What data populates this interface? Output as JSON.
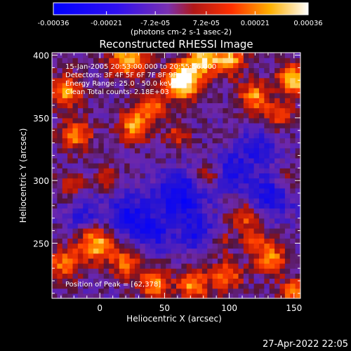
{
  "chart_data": {
    "type": "heatmap",
    "title": "Reconstructed RHESSI Image",
    "xlabel": "Heliocentric X (arcsec)",
    "ylabel": "Heliocentric Y (arcsec)",
    "xlim": [
      -37,
      155
    ],
    "ylim": [
      206,
      402
    ],
    "x_ticks": [
      0,
      50,
      100,
      150
    ],
    "y_ticks": [
      250,
      300,
      350,
      400
    ],
    "colorbar": {
      "min": -0.00036,
      "max": 0.00036,
      "tick_values": [
        -0.00036,
        -0.00021,
        -7.2e-05,
        7.2e-05,
        0.00021,
        0.00036
      ],
      "tick_labels": [
        "-0.00036",
        "-0.00021",
        "-7.2e-05",
        "7.2e-05",
        "0.00021",
        "0.00036"
      ],
      "unit_label": "(photons cm-2 s-1 asec-2)"
    },
    "info_lines": [
      "15-Jan-2005 20:53:00.000 to 20:55:56.000",
      "Detectors: 3F 4F 5F 6F 7F 8F 9F",
      "Energy Range: 25.0 - 50.0 keV",
      "Clean    Total counts: 2.18E+03"
    ],
    "peak_label": "Position of Peak = [62,378]",
    "peak": [
      62,
      378
    ],
    "grid": false
  },
  "footer": {
    "date": "27-Apr-2022 22:05"
  },
  "colors": {
    "background": "#000000",
    "low": "#0000ff",
    "mid": "#6a2aa8",
    "high": "#ffffff"
  }
}
